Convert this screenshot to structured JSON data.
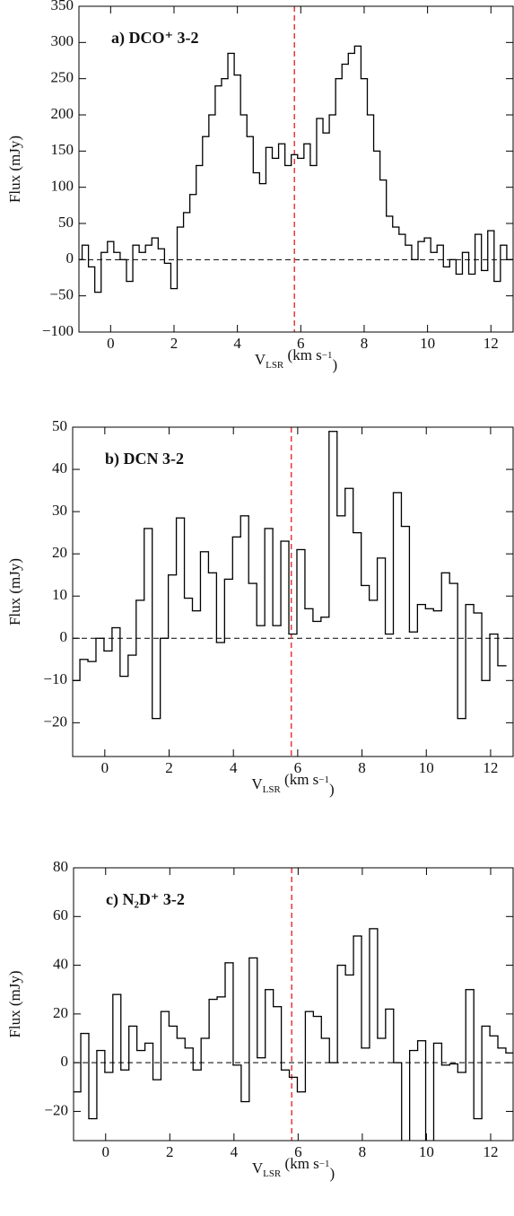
{
  "chart_data": [
    {
      "type": "step",
      "annotation": "a) DCO⁺ 3-2",
      "ylabel": "Flux (mJy)",
      "xlabel": [
        "V",
        "LSR",
        " (km s",
        "−1",
        ")"
      ],
      "color": "#000000",
      "hline": 0,
      "vline": 5.8,
      "vline_color": "#e8373a",
      "xlim": [
        -1,
        12.7
      ],
      "ylim": [
        -100,
        350
      ],
      "xticks": [
        0,
        2,
        4,
        6,
        8,
        10,
        12
      ],
      "yticks": [
        {
          "value": -100,
          "label": "−100"
        },
        {
          "value": -50,
          "label": "−50"
        },
        0,
        50,
        100,
        150,
        200,
        250,
        300,
        350
      ],
      "x": [
        -1.0,
        -0.8,
        -0.6,
        -0.4,
        -0.2,
        0.0,
        0.2,
        0.4,
        0.6,
        0.8,
        1.0,
        1.2,
        1.4,
        1.6,
        1.8,
        2.0,
        2.2,
        2.4,
        2.6,
        2.8,
        3.0,
        3.2,
        3.4,
        3.6,
        3.8,
        4.0,
        4.2,
        4.4,
        4.6,
        4.8,
        5.0,
        5.2,
        5.4,
        5.6,
        5.8,
        6.0,
        6.2,
        6.4,
        6.6,
        6.8,
        7.0,
        7.2,
        7.4,
        7.6,
        7.8,
        8.0,
        8.2,
        8.4,
        8.6,
        8.8,
        9.0,
        9.2,
        9.4,
        9.6,
        9.8,
        10.0,
        10.2,
        10.4,
        10.6,
        10.8,
        11.0,
        11.2,
        11.4,
        11.6,
        11.8,
        12.0,
        12.2,
        12.4,
        12.6
      ],
      "values": [
        0,
        20,
        -10,
        -45,
        10,
        25,
        10,
        0,
        -30,
        20,
        10,
        20,
        30,
        15,
        -5,
        -40,
        45,
        65,
        90,
        130,
        170,
        200,
        240,
        250,
        285,
        255,
        200,
        170,
        120,
        105,
        155,
        140,
        160,
        130,
        145,
        140,
        160,
        130,
        195,
        175,
        200,
        250,
        270,
        285,
        295,
        250,
        200,
        150,
        110,
        60,
        45,
        35,
        20,
        0,
        25,
        30,
        10,
        20,
        -10,
        0,
        -20,
        10,
        -20,
        35,
        -15,
        40,
        -30,
        20,
        0
      ]
    },
    {
      "type": "step",
      "annotation": "b) DCN 3-2",
      "ylabel": "Flux (mJy)",
      "xlabel": [
        "V",
        "LSR",
        " (km s",
        "−1",
        ")"
      ],
      "color": "#000000",
      "hline": 0,
      "vline": 5.8,
      "vline_color": "#e8373a",
      "xlim": [
        -1,
        12.7
      ],
      "ylim": [
        -28,
        50
      ],
      "xticks": [
        0,
        2,
        4,
        6,
        8,
        10,
        12
      ],
      "yticks": [
        {
          "value": -20,
          "label": "−20"
        },
        {
          "value": -10,
          "label": "−10"
        },
        0,
        10,
        20,
        30,
        40,
        50
      ],
      "x": [
        -0.9,
        -0.65,
        -0.4,
        -0.15,
        0.1,
        0.35,
        0.6,
        0.85,
        1.1,
        1.35,
        1.6,
        1.85,
        2.1,
        2.35,
        2.6,
        2.85,
        3.1,
        3.35,
        3.6,
        3.85,
        4.1,
        4.35,
        4.6,
        4.85,
        5.1,
        5.35,
        5.6,
        5.85,
        6.1,
        6.35,
        6.6,
        6.85,
        7.1,
        7.35,
        7.6,
        7.85,
        8.1,
        8.35,
        8.6,
        8.85,
        9.1,
        9.35,
        9.6,
        9.85,
        10.1,
        10.35,
        10.6,
        10.85,
        11.1,
        11.35,
        11.6,
        11.85,
        12.1,
        12.35
      ],
      "values": [
        -10,
        -5,
        -5.5,
        0,
        -3,
        2.5,
        -9,
        -4,
        9,
        26,
        -19,
        0,
        15,
        28.5,
        9.5,
        6.5,
        20.5,
        15.5,
        -1,
        14,
        24,
        29,
        13,
        3,
        26,
        3,
        23,
        1,
        21,
        7,
        4,
        5,
        49,
        29,
        35.5,
        25,
        12.5,
        9,
        19,
        1,
        34.5,
        26.5,
        1.5,
        8,
        7,
        6.5,
        15.5,
        13,
        -19,
        8,
        6,
        -10,
        1,
        -6.5
      ]
    },
    {
      "type": "step",
      "annotation": "c) N₂D⁺ 3-2",
      "ylabel": "Flux (mJy)",
      "xlabel": [
        "V",
        "LSR",
        " (km s",
        "−1",
        ")"
      ],
      "color": "#000000",
      "hline": 0,
      "vline": 5.8,
      "vline_color": "#e8373a",
      "xlim": [
        -1,
        12.7
      ],
      "ylim": [
        -32,
        80
      ],
      "xticks": [
        0,
        2,
        4,
        6,
        8,
        10,
        12
      ],
      "yticks": [
        {
          "value": -20,
          "label": "−20"
        },
        0,
        20,
        40,
        60,
        80
      ],
      "x": [
        -0.9,
        -0.65,
        -0.4,
        -0.15,
        0.1,
        0.35,
        0.6,
        0.85,
        1.1,
        1.35,
        1.6,
        1.85,
        2.1,
        2.35,
        2.6,
        2.85,
        3.1,
        3.35,
        3.6,
        3.85,
        4.1,
        4.35,
        4.6,
        4.85,
        5.1,
        5.35,
        5.6,
        5.85,
        6.1,
        6.35,
        6.6,
        6.85,
        7.1,
        7.35,
        7.6,
        7.85,
        8.1,
        8.35,
        8.6,
        8.85,
        9.1,
        9.35,
        9.6,
        9.85,
        10.1,
        10.35,
        10.6,
        10.85,
        11.1,
        11.35,
        11.6,
        11.85,
        12.1,
        12.35,
        12.6
      ],
      "values": [
        -12,
        12,
        -23,
        5,
        -4,
        28,
        -3,
        15,
        5,
        8,
        -7,
        21,
        15,
        10,
        6,
        -3,
        10,
        26,
        27,
        41,
        -1,
        -16,
        43,
        2,
        30,
        23,
        -3,
        -6,
        -12,
        21,
        19,
        10,
        0,
        40,
        36,
        52,
        6,
        55,
        10,
        22,
        0,
        -40,
        5,
        9,
        -40,
        8,
        -1,
        -0.5,
        -4,
        30,
        -23,
        15,
        11,
        6,
        4
      ]
    }
  ]
}
